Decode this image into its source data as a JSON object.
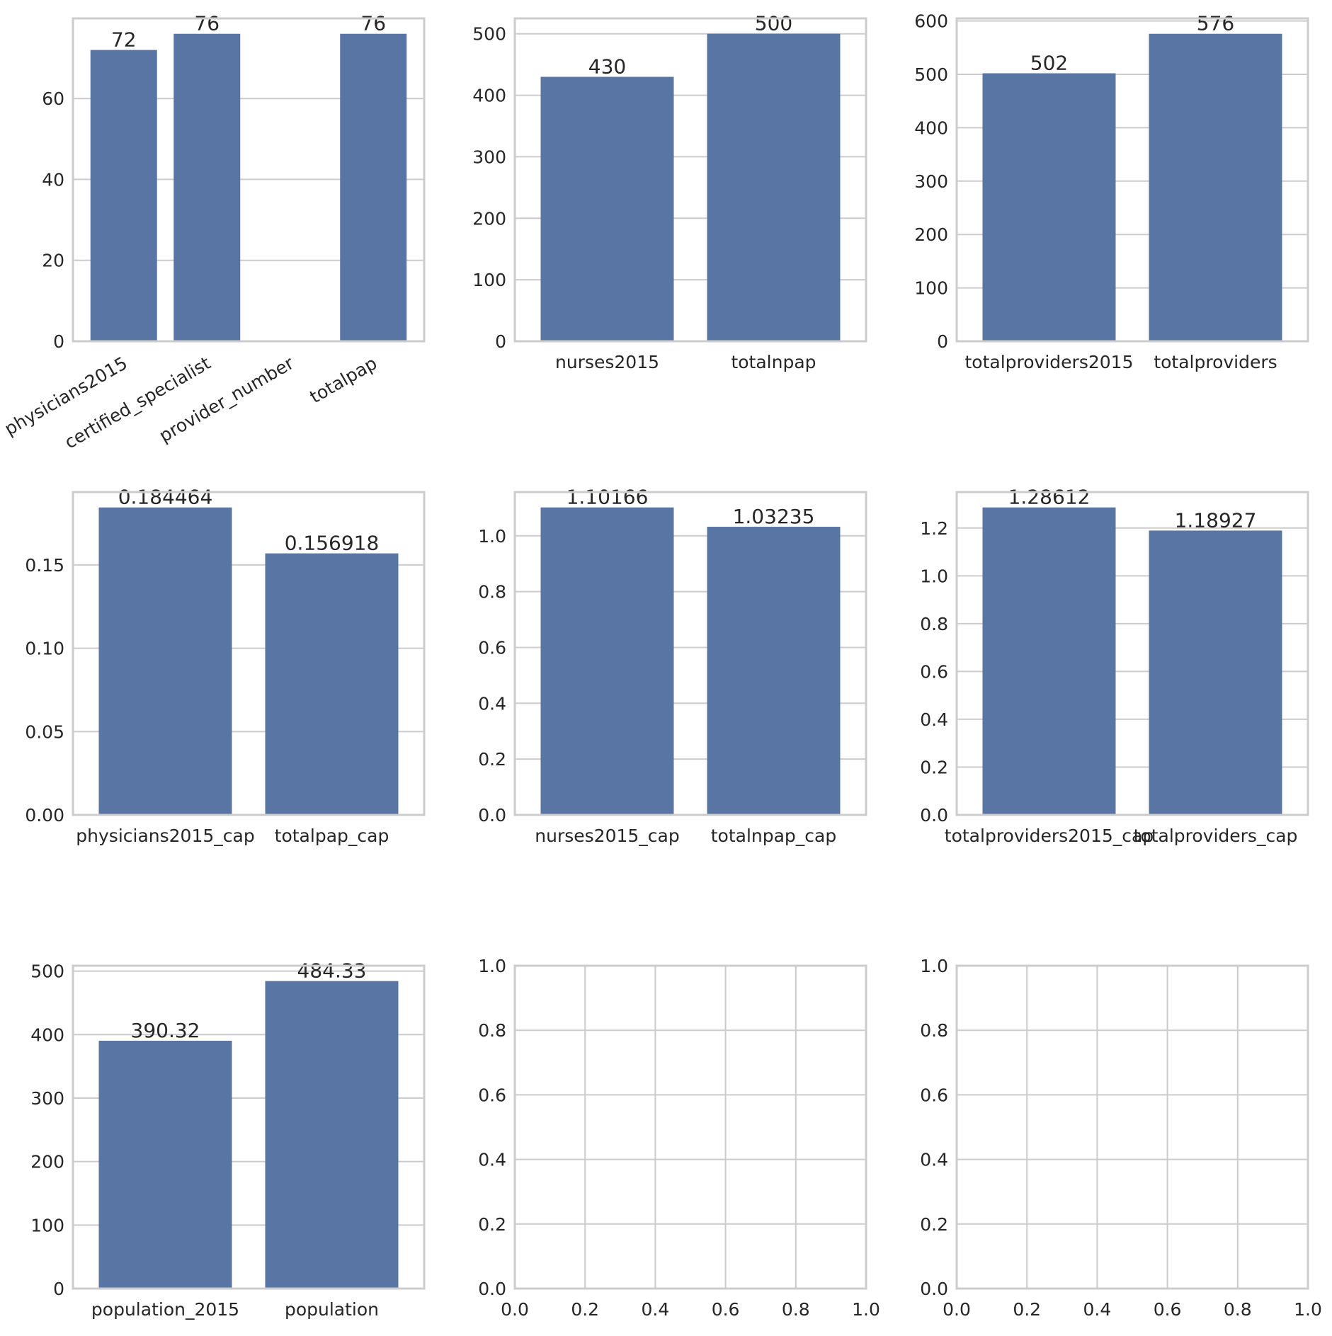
{
  "colors": {
    "bar": "#5975a4",
    "grid": "#cccccc",
    "text": "#262626",
    "background": "#ffffff"
  },
  "chart_data": [
    {
      "type": "bar",
      "categories": [
        "physicians2015",
        "certified_specialist",
        "provider_number",
        "totalpap"
      ],
      "values": [
        72,
        76,
        null,
        76
      ],
      "data_labels": [
        "72",
        "76",
        "",
        "76"
      ],
      "xtick_rotation": 30,
      "ylim": [
        0,
        79.8
      ],
      "yticks": [
        0,
        20,
        40,
        60
      ],
      "ytick_labels": [
        "0",
        "20",
        "40",
        "60"
      ],
      "title": "",
      "xlabel": "",
      "ylabel": "",
      "grid": "horizontal"
    },
    {
      "type": "bar",
      "categories": [
        "nurses2015",
        "totalnpap"
      ],
      "values": [
        430,
        500
      ],
      "data_labels": [
        "430",
        "500"
      ],
      "ylim": [
        0,
        525
      ],
      "yticks": [
        0,
        100,
        200,
        300,
        400,
        500
      ],
      "ytick_labels": [
        "0",
        "100",
        "200",
        "300",
        "400",
        "500"
      ],
      "title": "",
      "xlabel": "",
      "ylabel": "",
      "grid": "horizontal"
    },
    {
      "type": "bar",
      "categories": [
        "totalproviders2015",
        "totalproviders"
      ],
      "values": [
        502,
        576
      ],
      "data_labels": [
        "502",
        "576"
      ],
      "ylim": [
        0,
        604.8
      ],
      "yticks": [
        0,
        100,
        200,
        300,
        400,
        500,
        600
      ],
      "ytick_labels": [
        "0",
        "100",
        "200",
        "300",
        "400",
        "500",
        "600"
      ],
      "title": "",
      "xlabel": "",
      "ylabel": "",
      "grid": "horizontal"
    },
    {
      "type": "bar",
      "categories": [
        "physicians2015_cap",
        "totalpap_cap"
      ],
      "values": [
        0.184464,
        0.156918
      ],
      "data_labels": [
        "0.184464",
        "0.156918"
      ],
      "ylim": [
        0,
        0.1937
      ],
      "yticks": [
        0,
        0.05,
        0.1,
        0.15
      ],
      "ytick_labels": [
        "0.00",
        "0.05",
        "0.10",
        "0.15"
      ],
      "title": "",
      "xlabel": "",
      "ylabel": "",
      "grid": "horizontal"
    },
    {
      "type": "bar",
      "categories": [
        "nurses2015_cap",
        "totalnpap_cap"
      ],
      "values": [
        1.10166,
        1.03235
      ],
      "data_labels": [
        "1.10166",
        "1.03235"
      ],
      "ylim": [
        0,
        1.1567
      ],
      "yticks": [
        0,
        0.2,
        0.4,
        0.6,
        0.8,
        1.0
      ],
      "ytick_labels": [
        "0.0",
        "0.2",
        "0.4",
        "0.6",
        "0.8",
        "1.0"
      ],
      "title": "",
      "xlabel": "",
      "ylabel": "",
      "grid": "horizontal"
    },
    {
      "type": "bar",
      "categories": [
        "totalproviders2015_cap",
        "totalproviders_cap"
      ],
      "values": [
        1.28612,
        1.18927
      ],
      "data_labels": [
        "1.28612",
        "1.18927"
      ],
      "ylim": [
        0,
        1.3504
      ],
      "yticks": [
        0,
        0.2,
        0.4,
        0.6,
        0.8,
        1.0,
        1.2
      ],
      "ytick_labels": [
        "0.0",
        "0.2",
        "0.4",
        "0.6",
        "0.8",
        "1.0",
        "1.2"
      ],
      "title": "",
      "xlabel": "",
      "ylabel": "",
      "grid": "horizontal"
    },
    {
      "type": "bar",
      "categories": [
        "population_2015",
        "population"
      ],
      "values": [
        390.32,
        484.33
      ],
      "data_labels": [
        "390.32",
        "484.33"
      ],
      "ylim": [
        0,
        508.5
      ],
      "yticks": [
        0,
        100,
        200,
        300,
        400,
        500
      ],
      "ytick_labels": [
        "0",
        "100",
        "200",
        "300",
        "400",
        "500"
      ],
      "title": "",
      "xlabel": "",
      "ylabel": "",
      "grid": "horizontal"
    },
    {
      "type": "empty",
      "xlim": [
        0,
        1
      ],
      "ylim": [
        0,
        1
      ],
      "xticks": [
        0,
        0.2,
        0.4,
        0.6,
        0.8,
        1.0
      ],
      "xtick_labels": [
        "0.0",
        "0.2",
        "0.4",
        "0.6",
        "0.8",
        "1.0"
      ],
      "yticks": [
        0,
        0.2,
        0.4,
        0.6,
        0.8,
        1.0
      ],
      "ytick_labels": [
        "0.0",
        "0.2",
        "0.4",
        "0.6",
        "0.8",
        "1.0"
      ],
      "grid": "both"
    },
    {
      "type": "empty",
      "xlim": [
        0,
        1
      ],
      "ylim": [
        0,
        1
      ],
      "xticks": [
        0,
        0.2,
        0.4,
        0.6,
        0.8,
        1.0
      ],
      "xtick_labels": [
        "0.0",
        "0.2",
        "0.4",
        "0.6",
        "0.8",
        "1.0"
      ],
      "yticks": [
        0,
        0.2,
        0.4,
        0.6,
        0.8,
        1.0
      ],
      "ytick_labels": [
        "0.0",
        "0.2",
        "0.4",
        "0.6",
        "0.8",
        "1.0"
      ],
      "grid": "both"
    }
  ]
}
